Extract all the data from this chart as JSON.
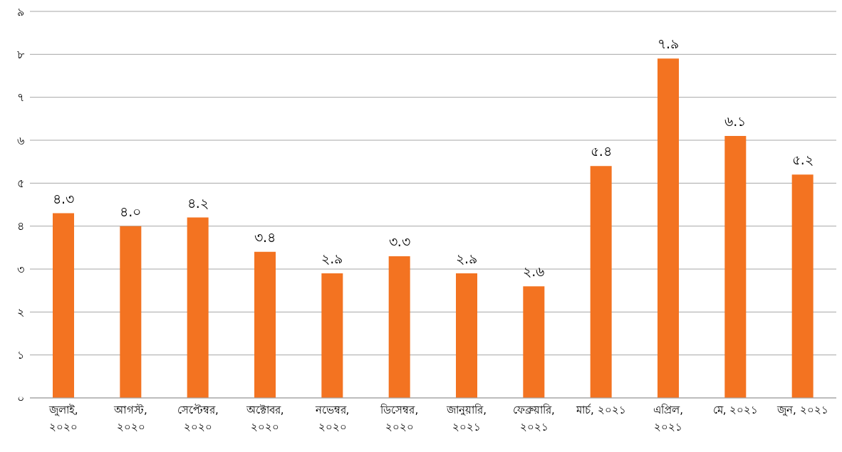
{
  "chart_data": {
    "type": "bar",
    "categories": [
      "জুলাই,\n২০২০",
      "আগস্ট,\n২০২০",
      "সেপ্টেম্বর,\n২০২০",
      "অক্টোবর,\n২০২০",
      "নভেম্বর,\n২০২০",
      "ডিসেম্বর,\n২০২০",
      "জানুয়ারি,\n২০২১",
      "ফেব্রুয়ারি,\n২০২১",
      "মার্চ, ২০২১",
      "এপ্রিল,\n২০২১",
      "মে, ২০২১",
      "জুন, ২০২১"
    ],
    "values": [
      4.3,
      4.0,
      4.2,
      3.4,
      2.9,
      3.3,
      2.9,
      2.6,
      5.4,
      7.9,
      6.1,
      5.2
    ],
    "value_labels": [
      "৪.৩",
      "৪.০",
      "৪.২",
      "৩.৪",
      "২.৯",
      "৩.৩",
      "২.৯",
      "২.৬",
      "৫.৪",
      "৭.৯",
      "৬.১",
      "৫.২"
    ],
    "color": "#f37321",
    "ylim": [
      0,
      9
    ],
    "yticks": [
      {
        "value": 0,
        "label": "০"
      },
      {
        "value": 1,
        "label": "১"
      },
      {
        "value": 2,
        "label": "২"
      },
      {
        "value": 3,
        "label": "৩"
      },
      {
        "value": 4,
        "label": "৪"
      },
      {
        "value": 5,
        "label": "৫"
      },
      {
        "value": 6,
        "label": "৬"
      },
      {
        "value": 7,
        "label": "৭"
      },
      {
        "value": 8,
        "label": "৮"
      },
      {
        "value": 9,
        "label": "৯"
      }
    ],
    "grid": "y"
  }
}
